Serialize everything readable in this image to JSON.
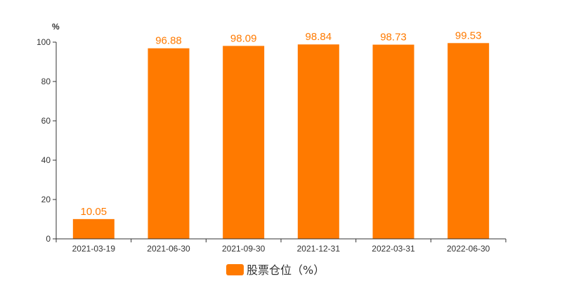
{
  "colors": {
    "bar": "#ff7a00",
    "label": "#ff7a00",
    "axis": "#333333"
  },
  "chart_data": {
    "type": "bar",
    "categories": [
      "2021-03-19",
      "2021-06-30",
      "2021-09-30",
      "2021-12-31",
      "2022-03-31",
      "2022-06-30"
    ],
    "series": [
      {
        "name": "股票仓位（%）",
        "values": [
          10.05,
          96.88,
          98.09,
          98.84,
          98.73,
          99.53
        ]
      }
    ],
    "value_labels": [
      "10.05",
      "96.88",
      "98.09",
      "98.84",
      "98.73",
      "99.53"
    ],
    "y_unit": "%",
    "ylim": [
      0,
      100
    ],
    "yticks": [
      0,
      20,
      40,
      60,
      80,
      100
    ],
    "grid": false,
    "legend_position": "bottom-center"
  }
}
